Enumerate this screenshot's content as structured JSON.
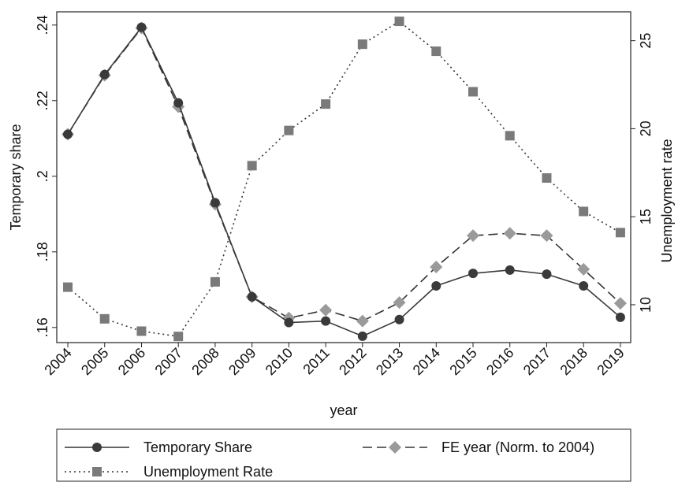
{
  "chart_data": {
    "type": "line",
    "x_label": "year",
    "y_label": "Temporary share",
    "y2_label": "Unemployment rate",
    "x": [
      2004,
      2005,
      2006,
      2007,
      2008,
      2009,
      2010,
      2011,
      2012,
      2013,
      2014,
      2015,
      2016,
      2017,
      2018,
      2019
    ],
    "xlim": [
      2003.7,
      2019.28
    ],
    "xticks": [
      2004,
      2005,
      2006,
      2007,
      2008,
      2009,
      2010,
      2011,
      2012,
      2013,
      2014,
      2015,
      2016,
      2017,
      2018,
      2019
    ],
    "ylim": [
      0.156,
      0.2435
    ],
    "yticks": [
      {
        "value": 0.16,
        "label": ".16"
      },
      {
        "value": 0.18,
        "label": ".18"
      },
      {
        "value": 0.2,
        "label": ".2"
      },
      {
        "value": 0.22,
        "label": ".22"
      },
      {
        "value": 0.24,
        "label": ".24"
      }
    ],
    "y2lim": [
      7.85,
      26.64
    ],
    "y2ticks": [
      10,
      15,
      20,
      25
    ],
    "legend": "bottom",
    "series": [
      {
        "name": "Temporary Share",
        "color": "#3a3a3a",
        "dash": "solid",
        "marker": "circle",
        "values": [
          0.2111,
          0.2269,
          0.2394,
          0.2194,
          0.193,
          0.1681,
          0.1613,
          0.1617,
          0.1577,
          0.1621,
          0.171,
          0.1743,
          0.1752,
          0.1741,
          0.171,
          0.1627
        ]
      },
      {
        "name": "FE year (Norm. to 2004)",
        "color": "#9a9a9a",
        "dash": "dashed",
        "marker": "diamond",
        "values": [
          0.2111,
          0.2267,
          0.2392,
          0.2184,
          0.1926,
          0.1681,
          0.1625,
          0.1646,
          0.1617,
          0.1666,
          0.176,
          0.1843,
          0.1849,
          0.1843,
          0.1754,
          0.1664
        ]
      },
      {
        "name": "Unemployment Rate",
        "color": "#7a7a7a",
        "dash": "dotted",
        "marker": "square",
        "axis": "y2",
        "values": [
          11.0,
          9.2,
          8.5,
          8.2,
          11.3,
          17.9,
          19.9,
          21.4,
          24.8,
          26.1,
          24.4,
          22.1,
          19.6,
          17.2,
          15.3,
          14.1
        ]
      }
    ]
  }
}
